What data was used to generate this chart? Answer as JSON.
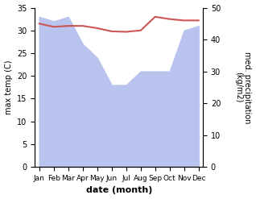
{
  "months": [
    "Jan",
    "Feb",
    "Mar",
    "Apr",
    "May",
    "Jun",
    "Jul",
    "Aug",
    "Sep",
    "Oct",
    "Nov",
    "Dec"
  ],
  "month_indices": [
    0,
    1,
    2,
    3,
    4,
    5,
    6,
    7,
    8,
    9,
    10,
    11
  ],
  "temperature": [
    31.5,
    30.8,
    31.0,
    31.0,
    30.5,
    29.8,
    29.7,
    30.0,
    33.0,
    32.5,
    32.2,
    32.2
  ],
  "precipitation": [
    33,
    32,
    33,
    27,
    24,
    18,
    18,
    21,
    21,
    21,
    30,
    31
  ],
  "temp_color": "#cd5555",
  "precip_color": "#b8c4ed",
  "ylim_temp": [
    0,
    35
  ],
  "ylim_precip_display": [
    0,
    50
  ],
  "ylabel_left": "max temp (C)",
  "ylabel_right": "med. precipitation\n(kg/m2)",
  "xlabel": "date (month)",
  "temp_linewidth": 1.5,
  "right_yticks": [
    0,
    10,
    20,
    30,
    40,
    50
  ],
  "left_yticks": [
    0,
    5,
    10,
    15,
    20,
    25,
    30,
    35
  ]
}
